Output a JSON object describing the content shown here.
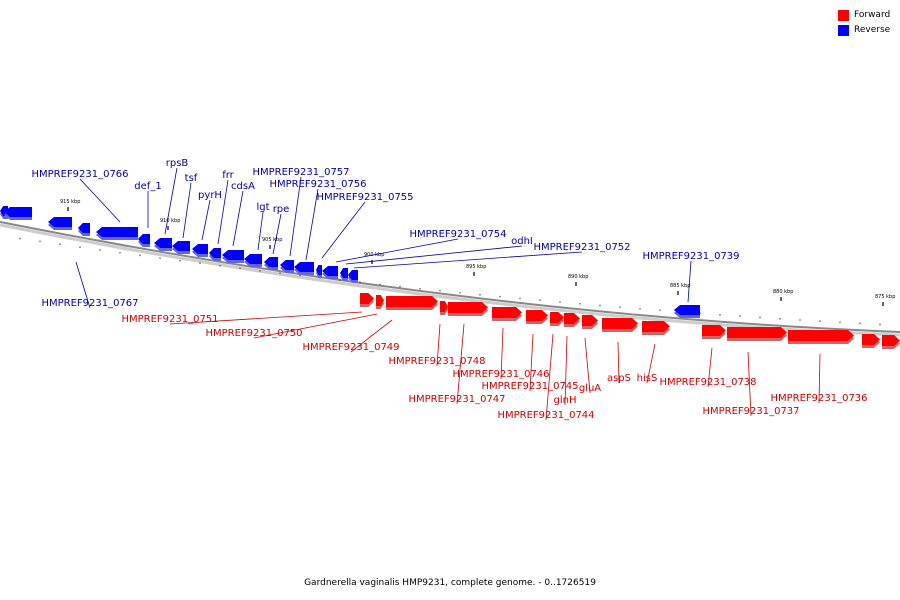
{
  "legend": {
    "items": [
      {
        "label": "Forward",
        "color": "#ff0000"
      },
      {
        "label": "Reverse",
        "color": "#0000ff"
      }
    ]
  },
  "caption": "Gardnerella vaginalis HMP9231, complete genome. - 0..1726519",
  "colors": {
    "forward": "#ff0000",
    "reverse": "#0000ff",
    "forward_label": "#cc0000",
    "reverse_label": "#0000aa",
    "backbone": "#888888"
  },
  "scale_labels": [
    "915 kbp",
    "910 kbp",
    "905 kbp",
    "900 kbp",
    "895 kbp",
    "890 kbp",
    "885 kbp",
    "880 kbp",
    "875 kbp"
  ],
  "reverse_genes": [
    "HMPREF9231_0766",
    "def_1",
    "rpsB",
    "tsf",
    "pyrH",
    "frr",
    "cdsA",
    "lgt",
    "rpe",
    "HMPREF9231_0757",
    "HMPREF9231_0756",
    "HMPREF9231_0755",
    "HMPREF9231_0754",
    "odhI",
    "HMPREF9231_0752",
    "HMPREF9231_0739",
    "HMPREF9231_0767"
  ],
  "forward_genes": [
    "HMPREF9231_0751",
    "HMPREF9231_0750",
    "HMPREF9231_0749",
    "HMPREF9231_0748",
    "HMPREF9231_0747",
    "HMPREF9231_0746",
    "HMPREF9231_0745",
    "HMPREF9231_0744",
    "glnH",
    "gluA",
    "aspS",
    "hisS",
    "HMPREF9231_0738",
    "HMPREF9231_0737",
    "HMPREF9231_0736"
  ]
}
